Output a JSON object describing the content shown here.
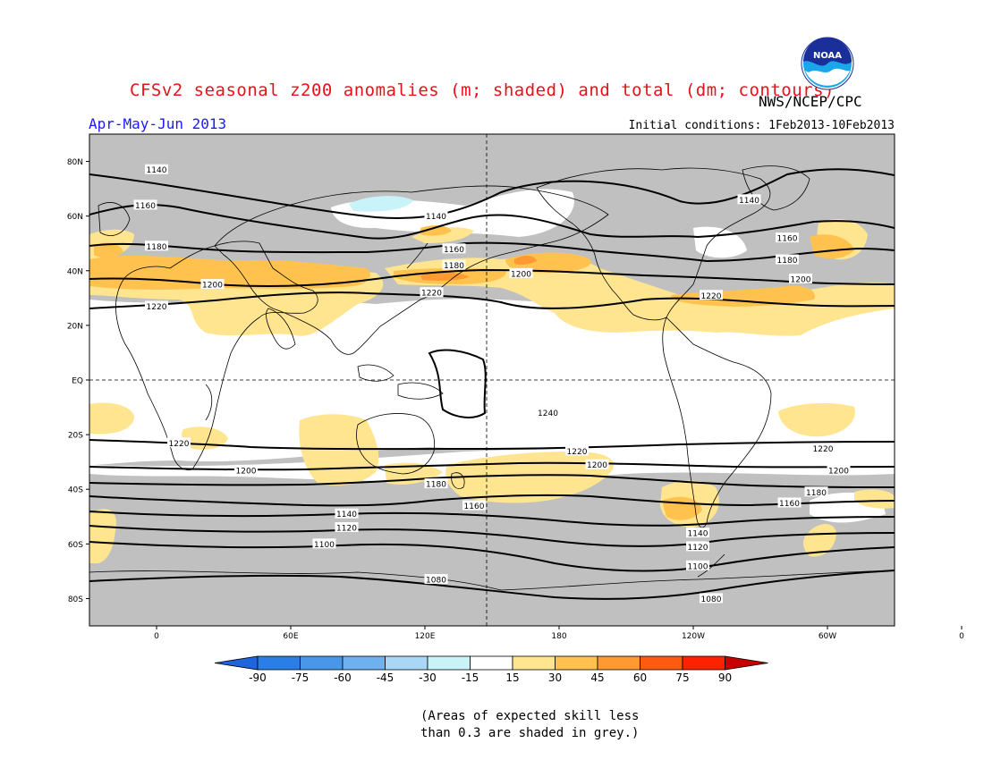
{
  "header": {
    "title": "CFSv2 seasonal z200 anomalies (m; shaded) and total (dm; contours)",
    "agency": "NWS/NCEP/CPC",
    "logo_text": "NOAA",
    "season": "Apr-May-Jun 2013",
    "initial_conditions": "Initial conditions: 1Feb2013-10Feb2013"
  },
  "map": {
    "lat_labels": [
      "80N",
      "60N",
      "40N",
      "20N",
      "EQ",
      "20S",
      "40S",
      "60S",
      "80S"
    ],
    "lon_labels": [
      "0",
      "60E",
      "120E",
      "180",
      "120W",
      "60W",
      "0"
    ],
    "contour_labels": [
      {
        "text": "1140",
        "lon": 0,
        "lat": 77
      },
      {
        "text": "1160",
        "lon": -5,
        "lat": 64
      },
      {
        "text": "1180",
        "lon": 0,
        "lat": 49
      },
      {
        "text": "1200",
        "lon": 25,
        "lat": 35
      },
      {
        "text": "1220",
        "lon": 0,
        "lat": 27
      },
      {
        "text": "1140",
        "lon": 125,
        "lat": 60
      },
      {
        "text": "1160",
        "lon": 133,
        "lat": 48
      },
      {
        "text": "1180",
        "lon": 133,
        "lat": 42
      },
      {
        "text": "1200",
        "lon": 163,
        "lat": 39
      },
      {
        "text": "1220",
        "lon": 123,
        "lat": 32
      },
      {
        "text": "1140",
        "lon": -95,
        "lat": 66
      },
      {
        "text": "1160",
        "lon": -78,
        "lat": 52
      },
      {
        "text": "1180",
        "lon": -78,
        "lat": 44
      },
      {
        "text": "1200",
        "lon": -72,
        "lat": 37
      },
      {
        "text": "1220",
        "lon": -112,
        "lat": 31
      },
      {
        "text": "1240",
        "lon": 175,
        "lat": -12
      },
      {
        "text": "1220",
        "lon": 10,
        "lat": -23
      },
      {
        "text": "1200",
        "lon": 40,
        "lat": -33
      },
      {
        "text": "1180",
        "lon": 125,
        "lat": -38
      },
      {
        "text": "1160",
        "lon": 142,
        "lat": -46
      },
      {
        "text": "1140",
        "lon": 85,
        "lat": -49
      },
      {
        "text": "1120",
        "lon": 85,
        "lat": -54
      },
      {
        "text": "1100",
        "lon": 75,
        "lat": -60
      },
      {
        "text": "1080",
        "lon": 125,
        "lat": -73
      },
      {
        "text": "1220",
        "lon": 188,
        "lat": -26
      },
      {
        "text": "1200",
        "lon": 197,
        "lat": -31
      },
      {
        "text": "1140",
        "lon": -118,
        "lat": -56
      },
      {
        "text": "1120",
        "lon": -118,
        "lat": -61
      },
      {
        "text": "1100",
        "lon": -118,
        "lat": -68
      },
      {
        "text": "1080",
        "lon": -112,
        "lat": -80
      },
      {
        "text": "1220",
        "lon": -62,
        "lat": -25
      },
      {
        "text": "1200",
        "lon": -55,
        "lat": -33
      },
      {
        "text": "1180",
        "lon": -65,
        "lat": -41
      },
      {
        "text": "1160",
        "lon": -77,
        "lat": -45
      }
    ]
  },
  "colorbar": {
    "labels": [
      "-90",
      "-75",
      "-60",
      "-45",
      "-30",
      "-15",
      "15",
      "30",
      "45",
      "60",
      "75",
      "90"
    ],
    "colors": [
      "#1e64dc",
      "#2b7ee6",
      "#4a97ea",
      "#6fb0ef",
      "#a8d8f5",
      "#c8f3f8",
      "#ffffff",
      "#ffe58f",
      "#ffc24f",
      "#ff9a33",
      "#ff5a10",
      "#ff2200",
      "#c60000"
    ]
  },
  "footnote": {
    "line1": "(Areas of expected skill less",
    "line2": "than 0.3 are shaded in grey.)"
  }
}
